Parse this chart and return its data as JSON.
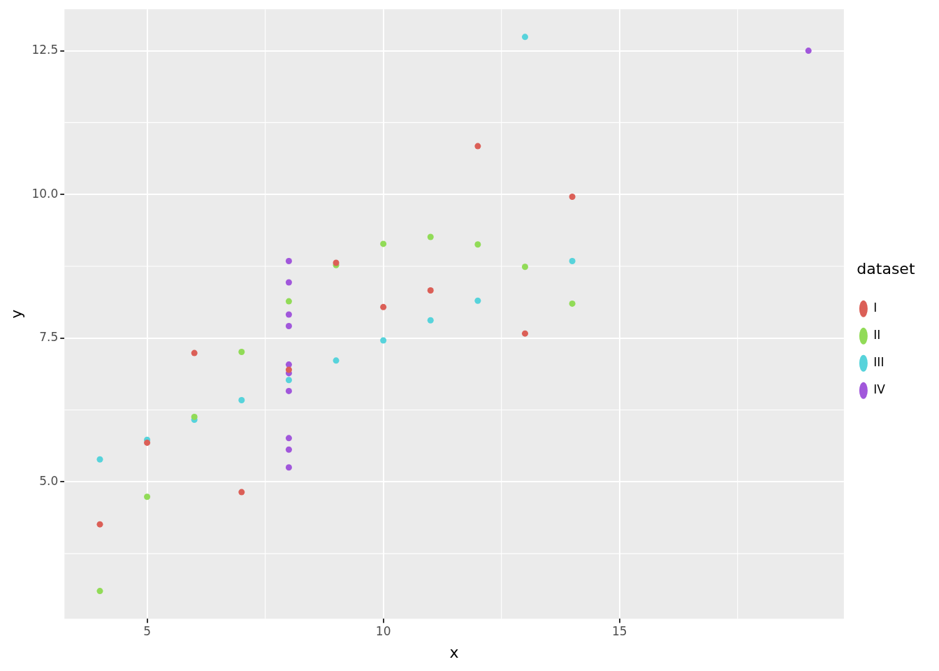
{
  "chart_data": {
    "type": "scatter",
    "xlabel": "x",
    "ylabel": "y",
    "legend_title": "dataset",
    "legend": "right",
    "grid": true,
    "marker": "circle",
    "xlim": [
      3.25,
      19.75
    ],
    "xticks": [
      5,
      10,
      15
    ],
    "ylim": [
      2.618,
      13.222
    ],
    "yticks": [
      {
        "value": 5,
        "label": "5.0"
      },
      {
        "value": 7.5,
        "label": "7.5"
      },
      {
        "value": 10,
        "label": "10.0"
      },
      {
        "value": 12.5,
        "label": "12.5"
      }
    ],
    "series": [
      {
        "name": "I",
        "color": "#db5f57",
        "x": [
          10,
          8,
          13,
          9,
          11,
          14,
          6,
          4,
          12,
          7,
          5
        ],
        "values": [
          8.04,
          6.95,
          7.58,
          8.81,
          8.33,
          9.96,
          7.24,
          4.26,
          10.84,
          4.82,
          5.68
        ]
      },
      {
        "name": "II",
        "color": "#91db57",
        "x": [
          10,
          8,
          13,
          9,
          11,
          14,
          6,
          4,
          12,
          7,
          5
        ],
        "values": [
          9.14,
          8.14,
          8.74,
          8.77,
          9.26,
          8.1,
          6.13,
          3.1,
          9.13,
          7.26,
          4.74
        ]
      },
      {
        "name": "III",
        "color": "#57d3db",
        "x": [
          10,
          8,
          13,
          9,
          11,
          14,
          6,
          4,
          12,
          7,
          5
        ],
        "values": [
          7.46,
          6.77,
          12.74,
          7.11,
          7.81,
          8.84,
          6.08,
          5.39,
          8.15,
          6.42,
          5.73
        ]
      },
      {
        "name": "IV",
        "color": "#a157db",
        "x": [
          8,
          8,
          8,
          8,
          8,
          8,
          8,
          19,
          8,
          8,
          8
        ],
        "values": [
          6.58,
          5.76,
          7.71,
          8.84,
          8.47,
          7.04,
          5.25,
          12.5,
          5.56,
          7.91,
          6.89
        ]
      }
    ]
  }
}
